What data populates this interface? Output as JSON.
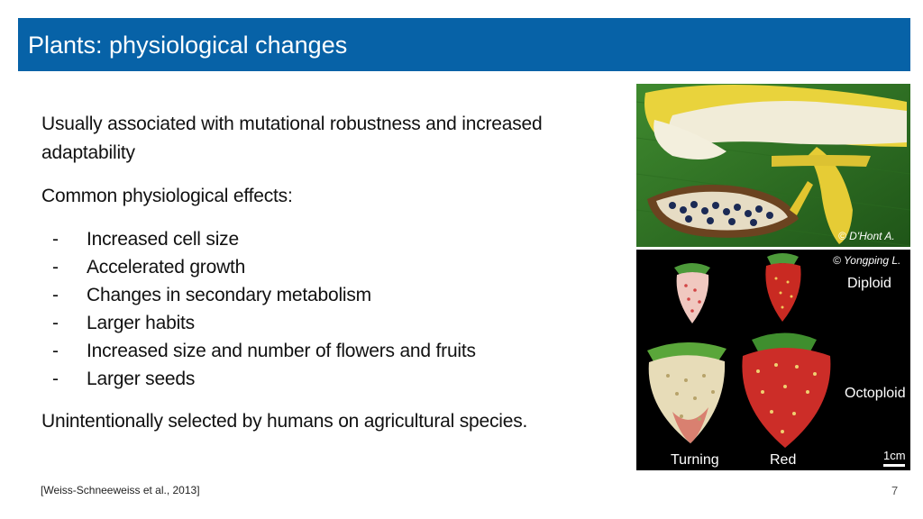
{
  "slide": {
    "title": "Plants: physiological changes",
    "page_number": "7",
    "citation": "[Weiss-Schneeweiss et al., 2013]"
  },
  "content": {
    "intro": "Usually associated with mutational robustness and increased adaptability",
    "effects_heading": "Common physiological effects:",
    "bullets": [
      "Increased cell size",
      "Accelerated growth",
      "Changes in secondary metabolism",
      "Larger habits",
      "Increased size and number of flowers and fruits",
      "Larger seeds"
    ],
    "bullet_marker": "-",
    "conclusion": "Unintentionally selected by humans on agricultural species."
  },
  "images": {
    "banana": {
      "credit": "© D'Hont A."
    },
    "strawberry": {
      "credit": "© Yongping L.",
      "row_labels": [
        "Diploid",
        "Octoploid"
      ],
      "column_labels": [
        "Turning",
        "Red"
      ],
      "scale_label": "1cm"
    }
  }
}
